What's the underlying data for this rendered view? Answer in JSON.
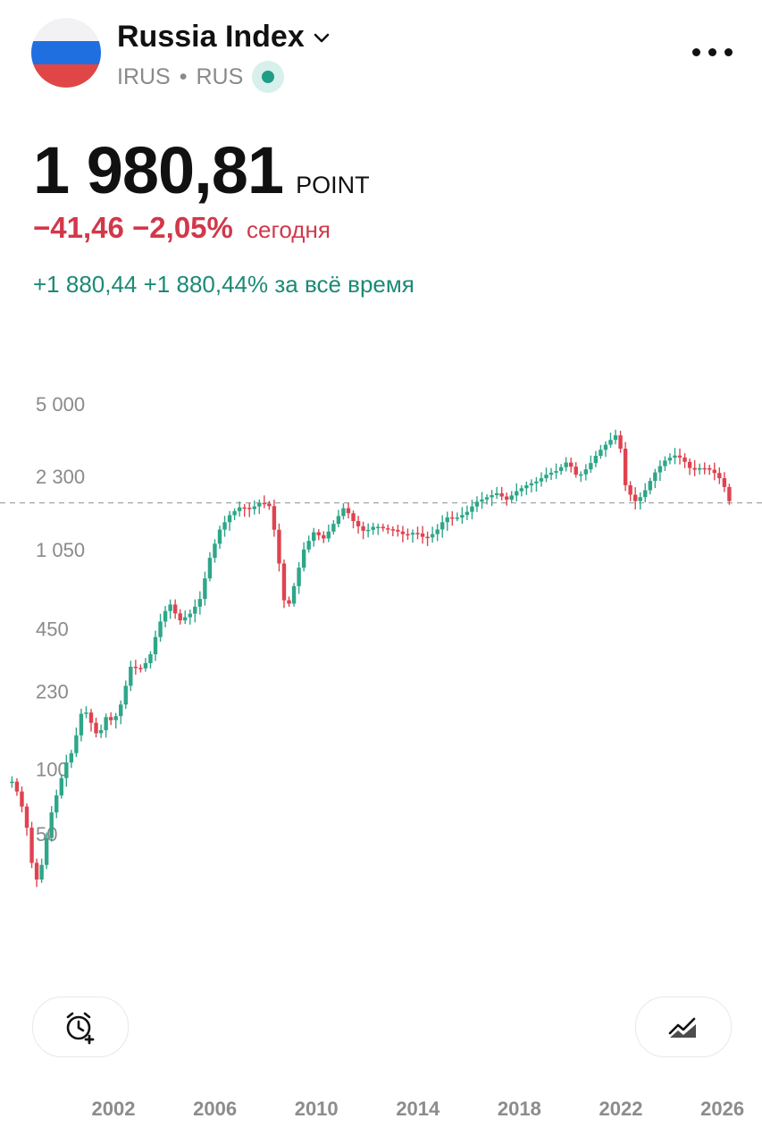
{
  "header": {
    "name": "Russia Index",
    "ticker": "IRUS",
    "separator": "•",
    "country": "RUS",
    "flag_colors": [
      "#f2f2f4",
      "#1f6fe0",
      "#e04646"
    ],
    "icons": [
      "chevron-down-icon",
      "live-dot-icon",
      "more-icon"
    ]
  },
  "quote": {
    "price": "1 980,81",
    "unit": "POINT",
    "day_change": "−41,46 −2,05%",
    "day_label": "сегодня",
    "all_change": "+1 880,44 +1 880,44% за всё время",
    "down_color": "#d1384a",
    "up_color": "#1b8a76"
  },
  "chart_data": {
    "type": "candlestick",
    "y_scale": "log",
    "y_ticks": [
      "5 000",
      "2 300",
      "1 050",
      "450",
      "230",
      "100",
      "50"
    ],
    "y_tick_values": [
      5000,
      2300,
      1050,
      450,
      230,
      100,
      50
    ],
    "x_ticks": [
      "2002",
      "2006",
      "2010",
      "2014",
      "2018",
      "2022",
      "2026"
    ],
    "ylim": [
      25,
      6000
    ],
    "reference_line": 1980.81,
    "up_color": "#2ea689",
    "down_color": "#e0424f",
    "series": [
      {
        "points": [
          [
            1998.0,
            100
          ],
          [
            1998.3,
            85
          ],
          [
            1998.6,
            60
          ],
          [
            1998.9,
            33
          ],
          [
            1999.2,
            42
          ],
          [
            1999.5,
            68
          ],
          [
            1999.8,
            90
          ],
          [
            2000.1,
            120
          ],
          [
            2000.4,
            140
          ],
          [
            2000.8,
            225
          ],
          [
            2001.1,
            190
          ],
          [
            2001.4,
            160
          ],
          [
            2001.7,
            200
          ],
          [
            2002.0,
            190
          ],
          [
            2002.3,
            230
          ],
          [
            2002.7,
            350
          ],
          [
            2003.0,
            330
          ],
          [
            2003.4,
            370
          ],
          [
            2003.8,
            540
          ],
          [
            2004.2,
            680
          ],
          [
            2004.6,
            560
          ],
          [
            2005.0,
            600
          ],
          [
            2005.4,
            700
          ],
          [
            2005.8,
            1100
          ],
          [
            2006.2,
            1500
          ],
          [
            2006.6,
            1750
          ],
          [
            2007.0,
            1900
          ],
          [
            2007.4,
            1850
          ],
          [
            2007.8,
            2000
          ],
          [
            2008.2,
            1900
          ],
          [
            2008.5,
            1100
          ],
          [
            2008.8,
            600
          ],
          [
            2009.1,
            800
          ],
          [
            2009.5,
            1200
          ],
          [
            2009.9,
            1450
          ],
          [
            2010.3,
            1350
          ],
          [
            2010.7,
            1600
          ],
          [
            2011.1,
            1900
          ],
          [
            2011.5,
            1600
          ],
          [
            2011.9,
            1450
          ],
          [
            2012.3,
            1550
          ],
          [
            2012.7,
            1500
          ],
          [
            2013.1,
            1480
          ],
          [
            2013.5,
            1400
          ],
          [
            2013.9,
            1450
          ],
          [
            2014.3,
            1350
          ],
          [
            2014.7,
            1450
          ],
          [
            2015.1,
            1700
          ],
          [
            2015.5,
            1680
          ],
          [
            2015.9,
            1780
          ],
          [
            2016.3,
            2000
          ],
          [
            2016.7,
            2100
          ],
          [
            2017.1,
            2200
          ],
          [
            2017.5,
            2050
          ],
          [
            2017.9,
            2250
          ],
          [
            2018.3,
            2400
          ],
          [
            2018.7,
            2500
          ],
          [
            2019.1,
            2700
          ],
          [
            2019.5,
            2800
          ],
          [
            2019.9,
            3100
          ],
          [
            2020.3,
            2600
          ],
          [
            2020.7,
            2900
          ],
          [
            2021.1,
            3400
          ],
          [
            2021.5,
            3800
          ],
          [
            2021.9,
            4200
          ],
          [
            2022.2,
            2300
          ],
          [
            2022.6,
            2000
          ],
          [
            2022.9,
            2200
          ],
          [
            2023.3,
            2700
          ],
          [
            2023.7,
            3100
          ],
          [
            2024.1,
            3300
          ],
          [
            2024.4,
            3200
          ],
          [
            2024.8,
            2800
          ],
          [
            2025.2,
            2900
          ],
          [
            2025.6,
            2800
          ],
          [
            2026.0,
            2500
          ],
          [
            2026.3,
            1980.81
          ]
        ]
      }
    ]
  },
  "controls": {
    "alarm_icon": "alarm-add-icon",
    "chart_type_icon": "chart-type-icon"
  }
}
